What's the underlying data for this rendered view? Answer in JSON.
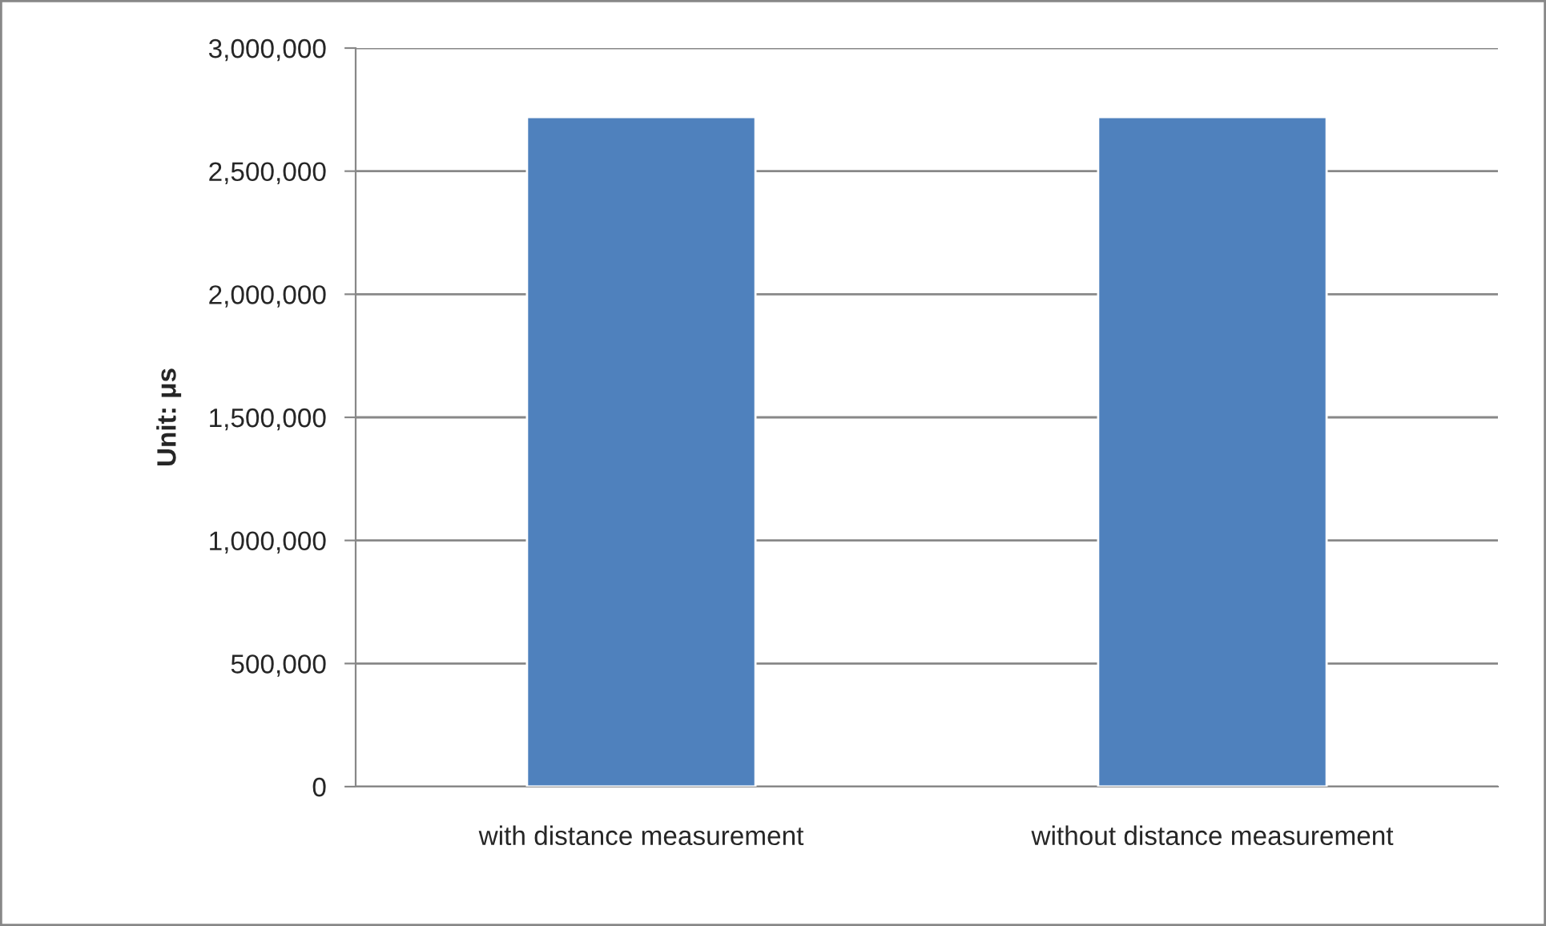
{
  "chart_data": {
    "type": "bar",
    "ylabel": "Unit: μs",
    "categories": [
      "with distance measurement",
      "without distance measurement"
    ],
    "values": [
      2720000,
      2720000
    ],
    "color": "#4f81bd",
    "ylim": [
      0,
      3000000
    ],
    "yticks": [
      {
        "value": 0,
        "label": "0"
      },
      {
        "value": 500000,
        "label": "500,000"
      },
      {
        "value": 1000000,
        "label": "1,000,000"
      },
      {
        "value": 1500000,
        "label": "1,500,000"
      },
      {
        "value": 2000000,
        "label": "2,000,000"
      },
      {
        "value": 2500000,
        "label": "2,500,000"
      },
      {
        "value": 3000000,
        "label": "3,000,000"
      }
    ],
    "grid": "y",
    "legend": false
  }
}
